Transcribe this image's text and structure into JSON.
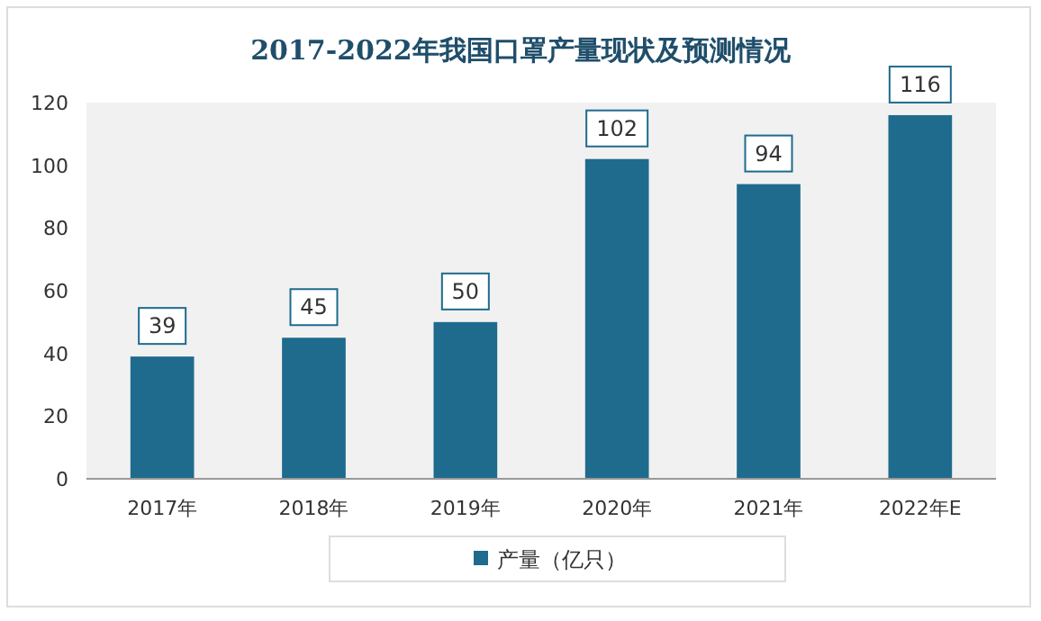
{
  "chart_data": {
    "type": "bar",
    "title": "2017-2022年我国口罩产量现状及预测情况",
    "categories": [
      "2017年",
      "2018年",
      "2019年",
      "2020年",
      "2021年",
      "2022年E"
    ],
    "series": [
      {
        "name": "产量（亿只）",
        "color": "#1f6b8e",
        "values": [
          39,
          45,
          50,
          102,
          94,
          116
        ]
      }
    ],
    "ylim": [
      0,
      120
    ],
    "yticks": [
      0,
      20,
      40,
      60,
      80,
      100,
      120
    ],
    "grid": false,
    "legend": "bottom",
    "data_labels": true
  }
}
